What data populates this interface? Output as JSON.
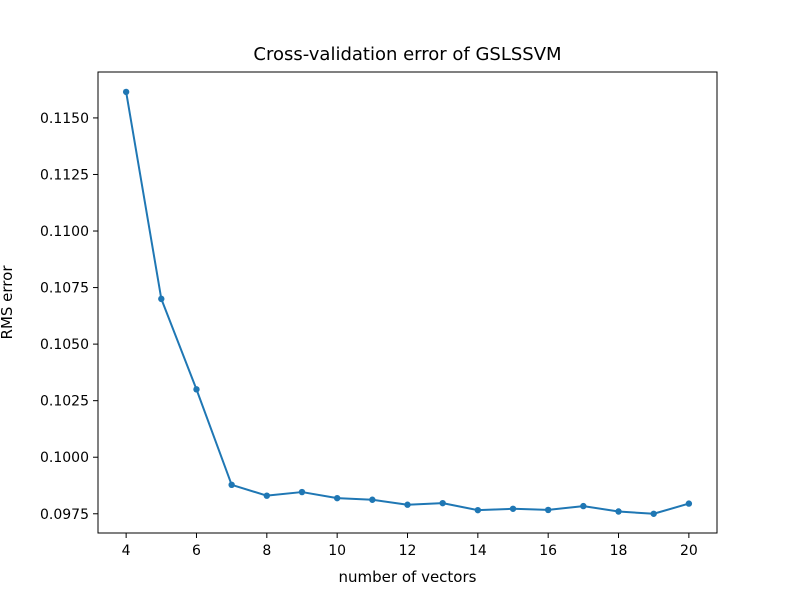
{
  "chart_data": {
    "type": "line",
    "title": "Cross-validation error of GSLSSVM",
    "xlabel": "number of vectors",
    "ylabel": "RMS error",
    "xlim": [
      3.2,
      20.8
    ],
    "ylim": [
      0.09665,
      0.11703
    ],
    "xticks": [
      4,
      6,
      8,
      10,
      12,
      14,
      16,
      18,
      20
    ],
    "xtick_labels": [
      "4",
      "6",
      "8",
      "10",
      "12",
      "14",
      "16",
      "18",
      "20"
    ],
    "yticks": [
      0.0975,
      0.1,
      0.1025,
      0.105,
      0.1075,
      0.11,
      0.1125,
      0.115
    ],
    "ytick_labels": [
      "0.0975",
      "0.1000",
      "0.1025",
      "0.1050",
      "0.1075",
      "0.1100",
      "0.1125",
      "0.1150"
    ],
    "grid": false,
    "series": [
      {
        "color": "#1f77b4",
        "marker": "dot",
        "x": [
          4,
          5,
          6,
          7,
          8,
          9,
          10,
          11,
          12,
          13,
          14,
          15,
          16,
          17,
          18,
          19,
          20
        ],
        "y": [
          0.11615,
          0.107,
          0.103,
          0.09878,
          0.0983,
          0.09846,
          0.09819,
          0.09812,
          0.0979,
          0.09797,
          0.09766,
          0.09772,
          0.09767,
          0.09784,
          0.0976,
          0.0975,
          0.09795
        ]
      }
    ]
  }
}
